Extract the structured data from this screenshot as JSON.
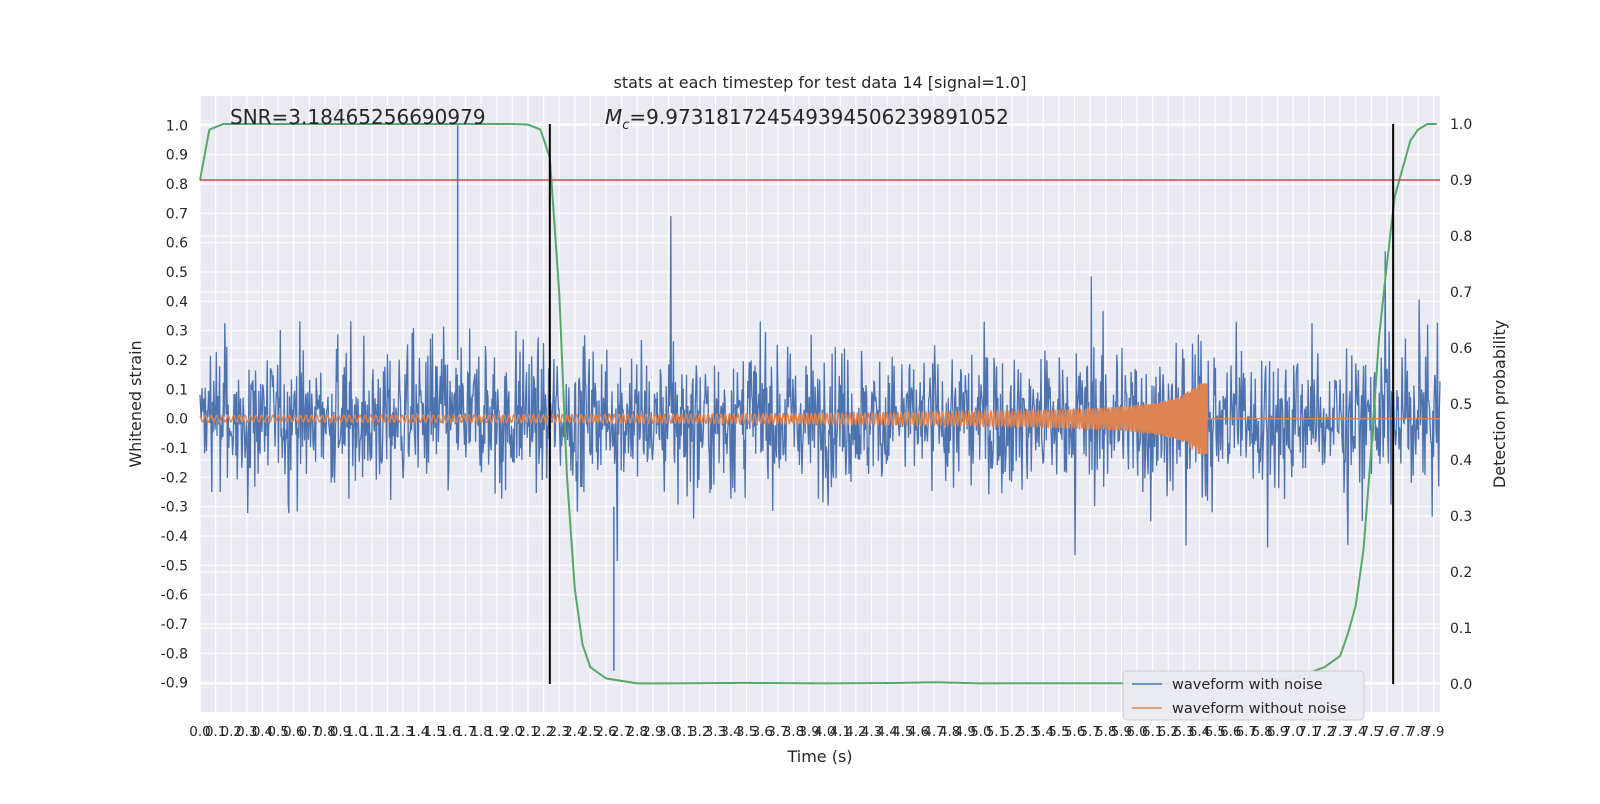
{
  "chart_data": {
    "type": "line",
    "title": "stats at each timestep for test data 14 [signal=1.0]",
    "xlabel": "Time (s)",
    "ylabel": "Whitened strain",
    "y2label": "Detection probability",
    "xlim": [
      0.0,
      7.94
    ],
    "ylim": [
      -1.0,
      1.1
    ],
    "y2lim": [
      -0.05,
      1.05
    ],
    "grid": true,
    "legend_position": "bottom-right",
    "x_ticks": [
      "0.0",
      "0.1",
      "0.2",
      "0.3",
      "0.4",
      "0.5",
      "0.6",
      "0.7",
      "0.8",
      "0.9",
      "1.0",
      "1.1",
      "1.2",
      "1.3",
      "1.4",
      "1.5",
      "1.6",
      "1.7",
      "1.8",
      "1.9",
      "2.0",
      "2.1",
      "2.2",
      "2.3",
      "2.4",
      "2.5",
      "2.6",
      "2.7",
      "2.8",
      "2.9",
      "3.0",
      "3.1",
      "3.2",
      "3.3",
      "3.4",
      "3.5",
      "3.6",
      "3.7",
      "3.8",
      "3.9",
      "4.0",
      "4.1",
      "4.2",
      "4.3",
      "4.4",
      "4.5",
      "4.6",
      "4.7",
      "4.8",
      "4.9",
      "5.0",
      "5.1",
      "5.2",
      "5.3",
      "5.4",
      "5.5",
      "5.6",
      "5.7",
      "5.8",
      "5.9",
      "6.0",
      "6.1",
      "6.2",
      "6.3",
      "6.4",
      "6.5",
      "6.6",
      "6.7",
      "6.8",
      "6.9",
      "7.0",
      "7.1",
      "7.2",
      "7.3",
      "7.4",
      "7.5",
      "7.6",
      "7.7",
      "7.8",
      "7.9"
    ],
    "y_ticks": [
      "1.0",
      "0.9",
      "0.8",
      "0.7",
      "0.6",
      "0.5",
      "0.4",
      "0.3",
      "0.2",
      "0.1",
      "0.0",
      "-0.1",
      "-0.2",
      "-0.3",
      "-0.4",
      "-0.5",
      "-0.6",
      "-0.7",
      "-0.8",
      "-0.9"
    ],
    "y2_ticks": [
      "1.0",
      "0.9",
      "0.8",
      "0.7",
      "0.6",
      "0.5",
      "0.4",
      "0.3",
      "0.2",
      "0.1",
      "0.0"
    ],
    "annotations": {
      "snr": "SNR=3.18465256690979",
      "mc_symbol": "M",
      "mc_sub": "c",
      "mc_value": "=9.973181724549394506239891052"
    },
    "series": [
      {
        "name": "waveform with noise",
        "color": "#4c72b0",
        "axis": "left",
        "description_values": "whitened noisy strain, roughly ±0.3 with spikes to 1.0"
      },
      {
        "name": "waveform without noise",
        "color": "#dd8452",
        "axis": "left",
        "chirp_end_time": 6.45,
        "chirp_peak_amplitude": 0.12
      },
      {
        "name": "",
        "color": "#55a868",
        "axis": "right",
        "x": [
          0.0,
          0.06,
          0.15,
          0.5,
          1.0,
          1.5,
          2.0,
          2.1,
          2.18,
          2.24,
          2.3,
          2.35,
          2.4,
          2.45,
          2.5,
          2.6,
          2.8,
          3.0,
          3.5,
          4.0,
          4.5,
          4.7,
          5.0,
          5.5,
          6.0,
          6.5,
          7.0,
          7.2,
          7.3,
          7.35,
          7.4,
          7.45,
          7.5,
          7.55,
          7.6,
          7.65,
          7.7,
          7.75,
          7.8,
          7.86,
          7.92
        ],
        "values": [
          0.9,
          0.99,
          1.0,
          1.0,
          1.0,
          1.0,
          1.0,
          0.999,
          0.99,
          0.94,
          0.7,
          0.37,
          0.17,
          0.07,
          0.03,
          0.01,
          0.001,
          0.001,
          0.002,
          0.001,
          0.002,
          0.003,
          0.001,
          0.0015,
          0.0015,
          0.001,
          0.01,
          0.03,
          0.05,
          0.09,
          0.14,
          0.24,
          0.42,
          0.62,
          0.75,
          0.87,
          0.92,
          0.97,
          0.99,
          1.0,
          1.0
        ]
      }
    ],
    "hlines": [
      {
        "axis": "right",
        "value": 0.9,
        "color": "#c44e52"
      }
    ],
    "vlines": [
      {
        "x": 2.24,
        "color": "#000000"
      },
      {
        "x": 7.64,
        "color": "#000000"
      }
    ]
  }
}
